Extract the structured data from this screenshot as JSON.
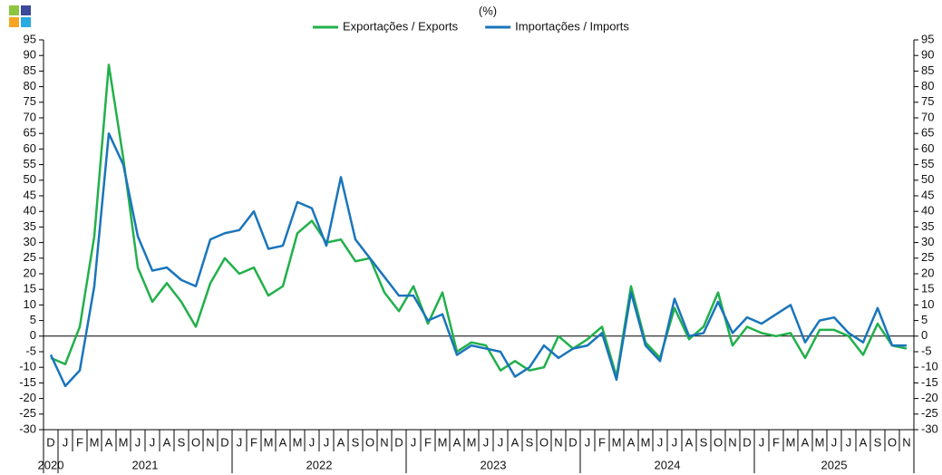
{
  "chart_data": {
    "type": "line",
    "subtitle": "(%)",
    "categories": [
      "D",
      "J",
      "F",
      "M",
      "A",
      "M",
      "J",
      "J",
      "A",
      "S",
      "O",
      "N",
      "D",
      "J",
      "F",
      "M",
      "A",
      "M",
      "J",
      "J",
      "A",
      "S",
      "O",
      "N",
      "D",
      "J",
      "F",
      "M",
      "A",
      "M",
      "J",
      "J",
      "A",
      "S",
      "O",
      "N",
      "D",
      "J",
      "F",
      "M",
      "A",
      "M",
      "J",
      "J",
      "A",
      "S",
      "O",
      "N",
      "D",
      "J",
      "F",
      "M",
      "A",
      "M",
      "J",
      "J",
      "A",
      "S",
      "O",
      "N"
    ],
    "year_groups": [
      {
        "label": "2020",
        "count": 1
      },
      {
        "label": "2021",
        "count": 12
      },
      {
        "label": "2022",
        "count": 12
      },
      {
        "label": "2023",
        "count": 12
      },
      {
        "label": "2024",
        "count": 12
      },
      {
        "label": "2025",
        "count": 11
      }
    ],
    "series": [
      {
        "name": "Exportações / Exports",
        "color": "#22b04b",
        "values": [
          -7,
          -9,
          3,
          32,
          87,
          57,
          22,
          11,
          17,
          11,
          3,
          17,
          25,
          20,
          22,
          13,
          16,
          33,
          37,
          30,
          31,
          24,
          25,
          14,
          8,
          16,
          4,
          14,
          -5,
          -2,
          -3,
          -11,
          -8,
          -11,
          -10,
          0,
          -4,
          -1,
          3,
          -13,
          16,
          -2,
          -7,
          9,
          -1,
          3,
          14,
          -3,
          3,
          1,
          0,
          1,
          -7,
          2,
          2,
          0,
          -6,
          4,
          -3,
          -4
        ]
      },
      {
        "name": "Importações / Imports",
        "color": "#1a75bb",
        "values": [
          -6,
          -16,
          -11,
          16,
          65,
          55,
          32,
          21,
          22,
          18,
          16,
          31,
          33,
          34,
          40,
          28,
          29,
          43,
          41,
          29,
          51,
          31,
          25,
          19,
          13,
          13,
          5,
          7,
          -6,
          -3,
          -4,
          -5,
          -13,
          -10,
          -3,
          -7,
          -4,
          -3,
          1,
          -14,
          14,
          -3,
          -8,
          12,
          0,
          1,
          11,
          1,
          6,
          4,
          7,
          10,
          -2,
          5,
          6,
          1,
          -2,
          9,
          -3,
          -3
        ]
      }
    ],
    "ylim": [
      -30,
      95
    ],
    "yticks": [
      -30,
      -25,
      -20,
      -15,
      -10,
      -5,
      0,
      5,
      10,
      15,
      20,
      25,
      30,
      35,
      40,
      45,
      50,
      55,
      60,
      65,
      70,
      75,
      80,
      85,
      90,
      95
    ],
    "y2lim": [
      -30,
      95
    ],
    "y2ticks": [
      -30,
      -25,
      -20,
      -15,
      -10,
      -5,
      0,
      5,
      10,
      15,
      20,
      25,
      30,
      35,
      40,
      45,
      50,
      55,
      60,
      65,
      70,
      75,
      80,
      85,
      90,
      95
    ]
  }
}
